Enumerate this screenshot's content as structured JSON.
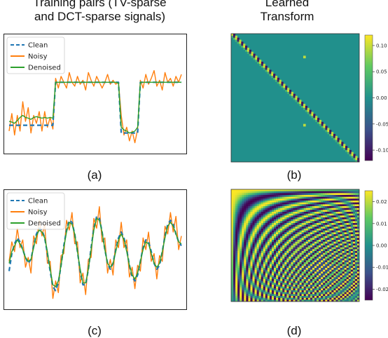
{
  "headings": {
    "left_line1": "Training pairs (TV-sparse",
    "left_line2": "and DCT-sparse signals)",
    "right_line1": "Learned",
    "right_line2": "Transform"
  },
  "panel_labels": {
    "a": "(a)",
    "b": "(b)",
    "c": "(c)",
    "d": "(d)"
  },
  "colors": {
    "clean": "#1f77b4",
    "noisy": "#ff7f0e",
    "denoised": "#2ca02c"
  },
  "chart_data": [
    {
      "id": "a",
      "type": "line",
      "title": "",
      "legend": [
        "Clean",
        "Noisy",
        "Denoised"
      ],
      "legend_position": "top-left",
      "x": [
        0,
        1,
        2,
        3,
        4,
        5,
        6,
        7,
        8,
        9,
        10,
        11,
        12,
        13,
        14,
        15,
        16,
        17,
        18,
        19,
        20,
        21,
        22,
        23,
        24,
        25,
        26,
        27,
        28,
        29,
        30,
        31,
        32,
        33,
        34,
        35,
        36,
        37,
        38,
        39,
        40,
        41,
        42,
        43,
        44,
        45,
        46,
        47,
        48,
        49,
        50,
        51,
        52,
        53,
        54,
        55,
        56,
        57,
        58,
        59,
        60,
        61,
        62,
        63
      ],
      "ylim": [
        -1.4,
        1.4
      ],
      "series": [
        {
          "name": "Clean",
          "style": "dashed",
          "values": [
            -0.8,
            -0.8,
            -0.8,
            -0.8,
            -0.8,
            -0.8,
            -0.8,
            -0.8,
            -0.8,
            -0.8,
            -0.8,
            -0.8,
            -0.8,
            -0.8,
            -0.8,
            -0.8,
            -0.8,
            0.3,
            0.3,
            0.3,
            0.3,
            0.3,
            0.3,
            0.3,
            0.3,
            0.3,
            0.3,
            0.3,
            0.3,
            0.3,
            0.3,
            0.3,
            0.3,
            0.3,
            0.3,
            0.3,
            0.3,
            0.3,
            0.3,
            0.3,
            0.3,
            -1.0,
            -1.0,
            -1.0,
            -1.0,
            -1.0,
            -1.0,
            -1.0,
            0.3,
            0.3,
            0.3,
            0.3,
            0.3,
            0.3,
            0.3,
            0.3,
            0.3,
            0.3,
            0.3,
            0.3,
            0.3,
            0.3,
            0.3,
            0.3
          ]
        },
        {
          "name": "Noisy",
          "style": "solid",
          "values": [
            -0.95,
            -0.5,
            -1.05,
            -0.55,
            -0.95,
            -0.2,
            -0.7,
            -0.35,
            -1.0,
            -0.55,
            -0.75,
            -0.45,
            -0.95,
            -0.45,
            -0.85,
            -0.6,
            -0.9,
            0.4,
            0.15,
            0.45,
            0.3,
            0.15,
            0.55,
            0.3,
            0.2,
            0.45,
            0.25,
            0.35,
            0.1,
            0.55,
            0.35,
            0.2,
            0.45,
            0.3,
            0.15,
            0.3,
            0.5,
            0.25,
            0.35,
            0.25,
            0.3,
            -0.55,
            -1.05,
            -0.85,
            -1.2,
            -0.95,
            -1.25,
            -0.9,
            0.35,
            0.15,
            0.5,
            0.25,
            0.4,
            0.6,
            0.2,
            0.35,
            0.1,
            0.55,
            0.3,
            0.4,
            0.2,
            0.45,
            0.3,
            0.5
          ]
        },
        {
          "name": "Denoised",
          "style": "solid",
          "values": [
            -0.7,
            -0.72,
            -0.75,
            -0.68,
            -0.6,
            -0.55,
            -0.6,
            -0.62,
            -0.65,
            -0.6,
            -0.58,
            -0.6,
            -0.62,
            -0.6,
            -0.62,
            -0.6,
            -0.62,
            0.3,
            0.3,
            0.3,
            0.3,
            0.3,
            0.3,
            0.3,
            0.3,
            0.3,
            0.3,
            0.3,
            0.3,
            0.3,
            0.3,
            0.3,
            0.3,
            0.3,
            0.3,
            0.3,
            0.3,
            0.3,
            0.3,
            0.3,
            0.28,
            -0.85,
            -0.92,
            -0.95,
            -1.0,
            -0.98,
            -0.95,
            -0.85,
            0.3,
            0.3,
            0.3,
            0.3,
            0.3,
            0.3,
            0.3,
            0.3,
            0.3,
            0.3,
            0.3,
            0.3,
            0.3,
            0.3,
            0.3,
            0.3
          ]
        }
      ]
    },
    {
      "id": "c",
      "type": "line",
      "title": "",
      "legend": [
        "Clean",
        "Noisy",
        "Denoised"
      ],
      "legend_position": "top-left",
      "x": [
        0,
        1,
        2,
        3,
        4,
        5,
        6,
        7,
        8,
        9,
        10,
        11,
        12,
        13,
        14,
        15,
        16,
        17,
        18,
        19,
        20,
        21,
        22,
        23,
        24,
        25,
        26,
        27,
        28,
        29,
        30,
        31,
        32,
        33,
        34,
        35,
        36,
        37,
        38,
        39,
        40,
        41,
        42,
        43,
        44,
        45,
        46,
        47,
        48,
        49,
        50,
        51,
        52,
        53,
        54,
        55,
        56,
        57,
        58,
        59,
        60,
        61,
        62,
        63
      ],
      "ylim": [
        -1.4,
        1.4
      ],
      "series": [
        {
          "name": "Clean",
          "style": "dashed",
          "values": [
            -0.55,
            -0.1,
            0.15,
            0.3,
            0.2,
            0.0,
            -0.2,
            -0.35,
            -0.25,
            0.1,
            0.4,
            0.55,
            0.5,
            0.3,
            -0.1,
            -0.55,
            -0.95,
            -1.05,
            -0.85,
            -0.4,
            0.1,
            0.5,
            0.75,
            0.7,
            0.4,
            -0.05,
            -0.55,
            -0.9,
            -0.9,
            -0.5,
            0.05,
            0.55,
            0.85,
            0.8,
            0.45,
            0.0,
            -0.35,
            -0.5,
            -0.35,
            0.0,
            0.3,
            0.45,
            0.3,
            0.0,
            -0.4,
            -0.7,
            -0.8,
            -0.65,
            -0.3,
            0.05,
            0.25,
            0.2,
            -0.05,
            -0.35,
            -0.5,
            -0.4,
            -0.05,
            0.35,
            0.65,
            0.75,
            0.65,
            0.4,
            0.2,
            0.1
          ]
        },
        {
          "name": "Noisy",
          "style": "solid",
          "values": [
            -0.3,
            0.2,
            -0.05,
            0.55,
            0.05,
            0.25,
            -0.45,
            -0.2,
            -0.6,
            0.35,
            0.15,
            0.75,
            0.35,
            0.65,
            -0.35,
            -0.3,
            -1.25,
            -0.8,
            -1.1,
            -0.15,
            -0.1,
            0.75,
            0.5,
            0.95,
            0.15,
            0.2,
            -0.85,
            -0.6,
            -1.15,
            -0.25,
            -0.2,
            0.8,
            0.55,
            1.1,
            0.2,
            0.3,
            -0.6,
            -0.25,
            -0.65,
            0.25,
            0.05,
            0.7,
            0.05,
            0.25,
            -0.7,
            -0.45,
            -1.0,
            -0.4,
            -0.55,
            0.3,
            0.0,
            0.45,
            -0.3,
            -0.1,
            -0.75,
            -0.15,
            -0.3,
            0.6,
            0.4,
            0.95,
            0.45,
            0.85,
            0.0,
            0.35
          ]
        },
        {
          "name": "Denoised",
          "style": "solid",
          "values": [
            -0.35,
            -0.05,
            0.1,
            0.25,
            0.15,
            0.0,
            -0.2,
            -0.3,
            -0.25,
            0.05,
            0.35,
            0.5,
            0.45,
            0.3,
            -0.05,
            -0.5,
            -0.9,
            -0.95,
            -0.8,
            -0.4,
            0.05,
            0.45,
            0.7,
            0.65,
            0.4,
            -0.05,
            -0.5,
            -0.85,
            -0.85,
            -0.5,
            0.0,
            0.5,
            0.8,
            0.75,
            0.45,
            0.0,
            -0.35,
            -0.45,
            -0.35,
            -0.05,
            0.25,
            0.4,
            0.25,
            -0.05,
            -0.4,
            -0.65,
            -0.75,
            -0.6,
            -0.3,
            0.0,
            0.2,
            0.15,
            -0.1,
            -0.35,
            -0.45,
            -0.35,
            -0.05,
            0.3,
            0.6,
            0.7,
            0.6,
            0.4,
            0.2,
            0.15
          ]
        }
      ]
    },
    {
      "id": "b",
      "type": "heatmap",
      "title": "",
      "pattern": "near-diagonal: strong alternating diagonal band, two isolated off-diagonal spots",
      "colormap": "viridis",
      "colorbar_ticks": [
        "0.10",
        "0.05",
        "0.00",
        "-0.05",
        "-0.10"
      ],
      "colorbar_range": [
        -0.12,
        0.12
      ]
    },
    {
      "id": "d",
      "type": "heatmap",
      "title": "",
      "pattern": "DCT-like basis: concentric oscillating fringes centred on the bottom-right corner",
      "colormap": "viridis",
      "colorbar_ticks": [
        "0.02",
        "0.01",
        "0.00",
        "-0.01",
        "-0.02"
      ],
      "colorbar_range": [
        -0.025,
        0.025
      ]
    }
  ]
}
